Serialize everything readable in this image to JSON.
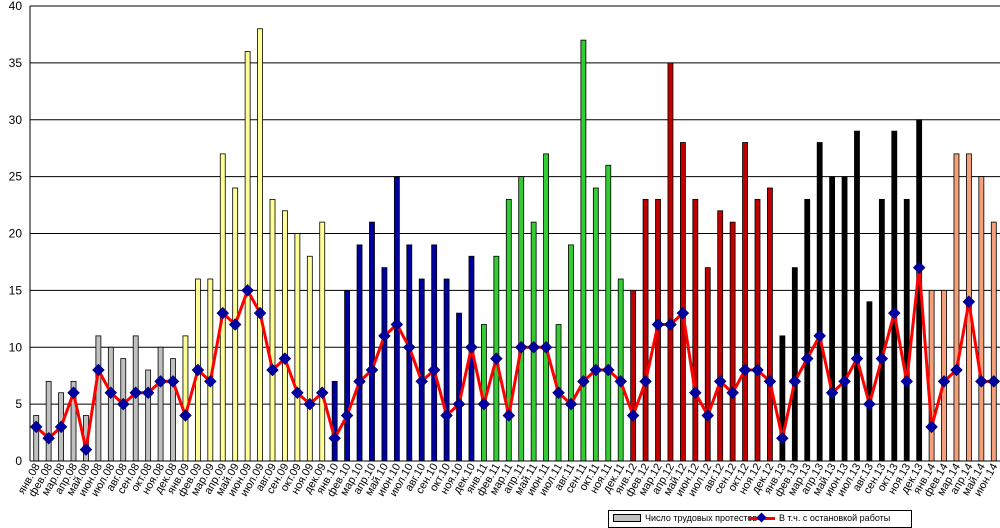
{
  "chart_data": {
    "type": "bar",
    "title": "",
    "xlabel": "",
    "ylabel": "",
    "ylim": [
      0,
      40
    ],
    "yticks": [
      0,
      5,
      10,
      15,
      20,
      25,
      30,
      35,
      40
    ],
    "grid": "horizontal",
    "legend_position": "bottom-right",
    "categories": [
      "янв.08",
      "фев.08",
      "мар.08",
      "апр.08",
      "май.08",
      "июн.08",
      "июл.08",
      "авг.08",
      "сен.08",
      "окт.08",
      "ноя.08",
      "дек.08",
      "янв.09",
      "фев.09",
      "мар.09",
      "апр.09",
      "май.09",
      "июн.09",
      "июл.09",
      "авг.09",
      "сен.09",
      "окт.09",
      "ноя.09",
      "дек.09",
      "янв.10",
      "фев.10",
      "мар.10",
      "апр.10",
      "май.10",
      "июн.10",
      "июл.10",
      "авг.10",
      "сен.10",
      "окт.10",
      "ноя.10",
      "дек.10",
      "янв.11",
      "фев.11",
      "мар.11",
      "апр.11",
      "май.11",
      "июн.11",
      "июл.11",
      "авг.11",
      "сен.11",
      "окт.11",
      "ноя.11",
      "дек.11",
      "янв.12",
      "фев.12",
      "мар.12",
      "апр.12",
      "май.12",
      "июн.12",
      "июл.12",
      "авг.12",
      "сен.12",
      "окт.12",
      "ноя.12",
      "дек.12",
      "янв.13",
      "фев.13",
      "мар.13",
      "апр.13",
      "май.13",
      "июн.13",
      "июл.13",
      "авг.13",
      "сен.13",
      "окт.13",
      "ноя.13",
      "дек.13",
      "янв.14",
      "фев.14",
      "мар.14",
      "апр.14",
      "май.14",
      "июн.14"
    ],
    "category_labels_shown": [
      "янв.08",
      "фев.08",
      "мар.08",
      "апр.08",
      "май.08",
      "июн.08",
      "июл.08",
      "авг.08",
      "сен.08",
      "окт.08",
      "ноя.08",
      "дек.08",
      "янв.09",
      "фев.09",
      "мар.09",
      "апр.09",
      "май.09",
      "июн.09",
      "июл.09",
      "авг.09",
      "сен.09",
      "окт.09",
      "ноя.09",
      "дек.09",
      "янв.10",
      "фев.10",
      "мар.10",
      "апр.10",
      "май.10",
      "июн.10",
      "июл.10",
      "авг.10",
      "сен.10",
      "окт.10",
      "ноя.10",
      "дек.10",
      "янв.11",
      "фев.11",
      "мар.11",
      "апр.11",
      "май.11",
      "июн.11",
      "июл.11",
      "авг.11",
      "сен.11",
      "окт.11",
      "ноя.11",
      "дек.11",
      "янв.12",
      "фев.12",
      "мар.12",
      "апр.12",
      "май.12",
      "июн.12",
      "июл.12",
      "авг.12",
      "сен.12",
      "окт.12",
      "ноя.12",
      "дек.12",
      "янв.13",
      "фев.13",
      "мар.13",
      "апр.13",
      "май.13",
      "июн.13",
      "июл.13",
      "авг.13",
      "сен.13",
      "окт.13",
      "ноя.13",
      "дек.13",
      "янв.14",
      "фев.14",
      "мар.14",
      "апр.14",
      "май.14",
      "июн.14"
    ],
    "series": [
      {
        "name": "Число трудовых протестов",
        "type": "bar",
        "values": [
          4,
          7,
          6,
          7,
          4,
          11,
          10,
          9,
          11,
          8,
          10,
          9,
          11,
          16,
          16,
          27,
          24,
          36,
          38,
          23,
          22,
          20,
          18,
          21,
          7,
          15,
          19,
          21,
          17,
          25,
          19,
          16,
          19,
          16,
          13,
          18,
          12,
          18,
          23,
          25,
          21,
          27,
          12,
          19,
          37,
          24,
          26,
          16,
          15,
          23,
          23,
          35,
          28,
          23,
          17,
          22,
          21,
          28,
          23,
          24,
          11,
          17,
          23,
          28,
          25,
          25,
          29,
          14,
          23,
          29,
          23,
          30,
          15,
          15,
          27,
          27,
          25,
          21
        ],
        "year_colors": [
          "#c0c0c0",
          "#ffff99",
          "#0000a0",
          "#33cc33",
          "#c00000",
          "#000000",
          "#f4a07a"
        ]
      },
      {
        "name": "В т.ч. с остановкой работы",
        "type": "line",
        "color": "#ff0000",
        "marker_color": "#0000a0",
        "values": [
          3,
          2,
          3,
          6,
          1,
          8,
          6,
          5,
          6,
          6,
          7,
          7,
          4,
          8,
          7,
          13,
          12,
          15,
          13,
          8,
          9,
          6,
          5,
          6,
          2,
          4,
          7,
          8,
          11,
          12,
          10,
          7,
          8,
          4,
          5,
          10,
          5,
          9,
          4,
          10,
          10,
          10,
          6,
          5,
          7,
          8,
          8,
          7,
          4,
          7,
          12,
          12,
          13,
          6,
          4,
          7,
          6,
          8,
          8,
          7,
          2,
          7,
          9,
          11,
          6,
          7,
          9,
          5,
          9,
          13,
          7,
          17,
          3,
          7,
          8,
          14,
          7,
          7
        ]
      }
    ]
  },
  "legend": {
    "bar_label": "Число трудовых протестов",
    "line_label": "В т.ч. с остановкой работы"
  }
}
